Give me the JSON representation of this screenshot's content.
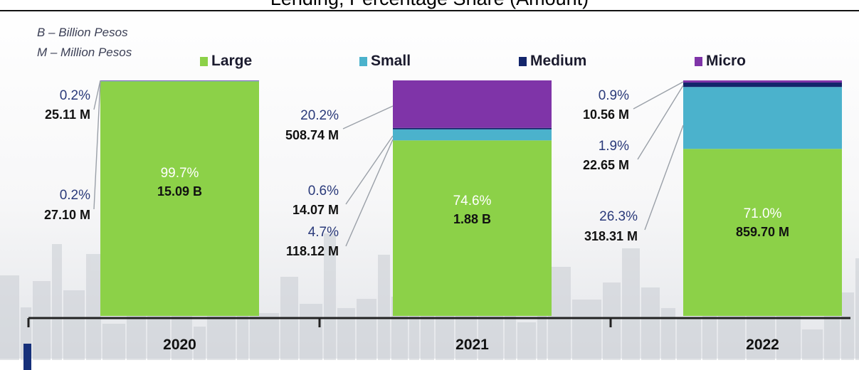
{
  "page": {
    "title": "Lending, Percentage Share (Amount)",
    "units_b": "B – Billion Pesos",
    "units_m": "M – Million Pesos"
  },
  "colors": {
    "large": "#8cd148",
    "small": "#4bb2cc",
    "medium": "#13256b",
    "micro": "#7f34a8",
    "leader": "#9aa0a8",
    "axis": "#222222"
  },
  "chart_data": {
    "type": "bar",
    "stacked": true,
    "orientation": "vertical",
    "ylim": [
      0,
      100
    ],
    "grid": false,
    "legend_position": "top",
    "categories": [
      "2020",
      "2021",
      "2022"
    ],
    "series": [
      {
        "name": "Large",
        "key": "large",
        "values": [
          99.7,
          74.6,
          71.0
        ],
        "amounts": [
          "15.09 B",
          "1.88 B",
          "859.70 M"
        ]
      },
      {
        "name": "Small",
        "key": "small",
        "values": [
          0.2,
          4.7,
          26.3
        ],
        "amounts": [
          "27.10 M",
          "118.12 M",
          "318.31 M"
        ]
      },
      {
        "name": "Medium",
        "key": "medium",
        "values": [
          0.0,
          0.6,
          1.9
        ],
        "amounts": [
          "",
          "14.07 M",
          "22.65 M"
        ]
      },
      {
        "name": "Micro",
        "key": "micro",
        "values": [
          0.2,
          20.2,
          0.9
        ],
        "amounts": [
          "25.11 M",
          "508.74 M",
          "10.56 M"
        ]
      }
    ],
    "bars": [
      {
        "year": "2020",
        "inside": {
          "pct": "99.7%",
          "amount": "15.09 B"
        },
        "callouts": [
          {
            "pct": "0.2%",
            "amount": "25.11 M",
            "series": "micro"
          },
          {
            "pct": "0.2%",
            "amount": "27.10 M",
            "series": "small"
          }
        ]
      },
      {
        "year": "2021",
        "inside": {
          "pct": "74.6%",
          "amount": "1.88 B"
        },
        "callouts": [
          {
            "pct": "20.2%",
            "amount": "508.74 M",
            "series": "micro"
          },
          {
            "pct": "0.6%",
            "amount": "14.07 M",
            "series": "medium"
          },
          {
            "pct": "4.7%",
            "amount": "118.12 M",
            "series": "small"
          }
        ]
      },
      {
        "year": "2022",
        "inside": {
          "pct": "71.0%",
          "amount": "859.70 M"
        },
        "callouts": [
          {
            "pct": "0.9%",
            "amount": "10.56 M",
            "series": "micro"
          },
          {
            "pct": "1.9%",
            "amount": "22.65 M",
            "series": "medium"
          },
          {
            "pct": "26.3%",
            "amount": "318.31 M",
            "series": "small"
          }
        ]
      }
    ]
  }
}
